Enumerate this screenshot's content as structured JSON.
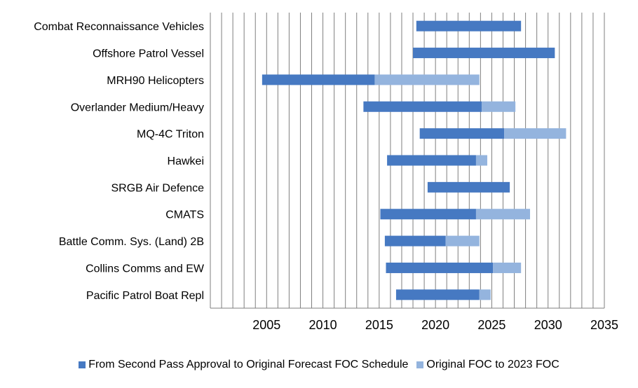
{
  "chart_data": {
    "type": "bar",
    "orientation": "horizontal",
    "stacked": true,
    "title": "",
    "xlabel": "",
    "ylabel": "",
    "xlim": [
      2000,
      2035
    ],
    "xticks": [
      2005,
      2010,
      2015,
      2020,
      2025,
      2030,
      2035
    ],
    "grid": true,
    "legend_position": "bottom",
    "categories": [
      "Combat Reconnaissance Vehicles",
      "Offshore Patrol Vessel",
      "MRH90 Helicopters",
      "Overlander Medium/Heavy",
      "MQ-4C Triton",
      "Hawkei",
      "SRGB Air Defence",
      "CMATS",
      "Battle Comm. Sys. (Land) 2B",
      "Collins Comms and EW",
      "Pacific Patrol Boat Repl"
    ],
    "series": [
      {
        "name": "From Second Pass Approval to Original Forecast FOC Schedule",
        "color": "#4679c2",
        "ranges": [
          [
            2018.3,
            2027.6
          ],
          [
            2018.0,
            2030.6
          ],
          [
            2004.6,
            2014.6
          ],
          [
            2013.6,
            2024.1
          ],
          [
            2018.6,
            2026.1
          ],
          [
            2015.7,
            2023.6
          ],
          [
            2019.3,
            2026.6
          ],
          [
            2015.1,
            2023.6
          ],
          [
            2015.5,
            2020.9
          ],
          [
            2015.6,
            2025.1
          ],
          [
            2016.5,
            2023.9
          ]
        ]
      },
      {
        "name": "Original FOC to 2023 FOC",
        "color": "#94b4de",
        "ranges": [
          null,
          null,
          [
            2014.6,
            2023.9
          ],
          [
            2024.1,
            2027.1
          ],
          [
            2026.1,
            2031.6
          ],
          [
            2023.6,
            2024.6
          ],
          null,
          [
            2023.6,
            2028.4
          ],
          [
            2020.9,
            2023.9
          ],
          [
            2025.1,
            2027.6
          ],
          [
            2023.9,
            2024.9
          ]
        ]
      }
    ]
  }
}
